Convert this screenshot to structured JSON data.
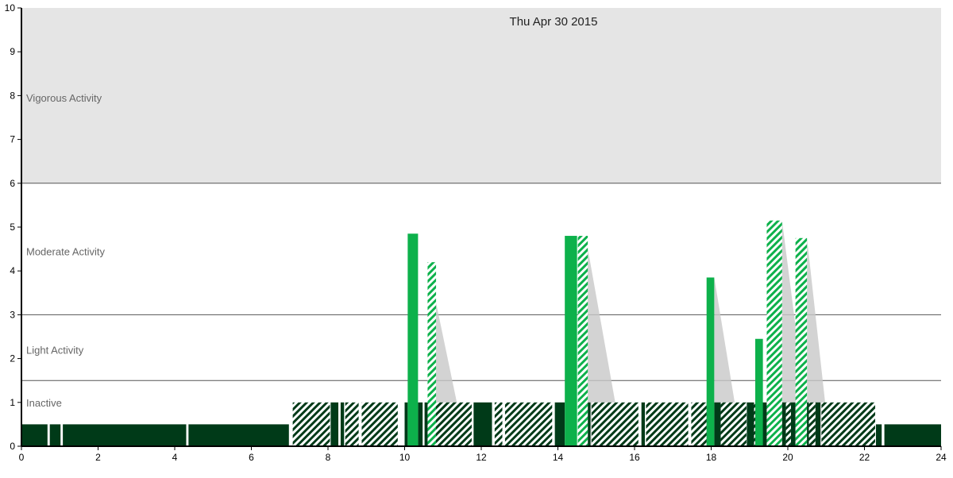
{
  "chart_data": {
    "type": "bar",
    "title": "Thu Apr 30 2015",
    "xlabel": "",
    "ylabel": "",
    "xlim": [
      0,
      24
    ],
    "ylim": [
      0,
      10
    ],
    "x_ticks": [
      0,
      2,
      4,
      6,
      8,
      10,
      12,
      14,
      16,
      18,
      20,
      22,
      24
    ],
    "y_ticks": [
      0,
      1,
      2,
      3,
      4,
      5,
      6,
      7,
      8,
      9,
      10
    ],
    "zones": [
      {
        "label": "Inactive",
        "from": 0,
        "to": 1.5,
        "label_y": 1.0,
        "fill": "#ffffff"
      },
      {
        "label": "Light Activity",
        "from": 1.5,
        "to": 3,
        "label_y": 2.2,
        "fill": "#ffffff"
      },
      {
        "label": "Moderate Activity",
        "from": 3,
        "to": 6,
        "label_y": 4.45,
        "fill": "#ffffff"
      },
      {
        "label": "Vigorous Activity",
        "from": 6,
        "to": 10,
        "label_y": 7.95,
        "fill": "#e5e5e5"
      }
    ],
    "zone_boundaries": [
      1.5,
      3,
      6
    ],
    "colors": {
      "dark": "#003a18",
      "bright": "#0db14b",
      "hatch": "#003a18",
      "shadow": "#c8c8c8",
      "vigorous_bg": "#e5e5e5"
    },
    "series": [
      {
        "style": "solid-dark",
        "points": [
          {
            "x0": 0.0,
            "x1": 0.68,
            "y": 0.5
          },
          {
            "x0": 0.74,
            "x1": 1.02,
            "y": 0.5
          },
          {
            "x0": 1.08,
            "x1": 4.3,
            "y": 0.5
          },
          {
            "x0": 4.36,
            "x1": 6.98,
            "y": 0.5
          },
          {
            "x0": 8.07,
            "x1": 8.27,
            "y": 1.0
          },
          {
            "x0": 8.33,
            "x1": 8.42,
            "y": 1.0
          },
          {
            "x0": 10.0,
            "x1": 10.08,
            "y": 1.0
          },
          {
            "x0": 10.35,
            "x1": 10.47,
            "y": 1.0
          },
          {
            "x0": 10.52,
            "x1": 10.6,
            "y": 1.0
          },
          {
            "x0": 11.8,
            "x1": 12.28,
            "y": 1.0
          },
          {
            "x0": 13.92,
            "x1": 14.18,
            "y": 1.0
          },
          {
            "x0": 14.78,
            "x1": 14.85,
            "y": 1.0
          },
          {
            "x0": 16.18,
            "x1": 16.27,
            "y": 1.0
          },
          {
            "x0": 17.88,
            "x1": 17.95,
            "y": 1.0
          },
          {
            "x0": 18.08,
            "x1": 18.25,
            "y": 1.0
          },
          {
            "x0": 18.93,
            "x1": 19.12,
            "y": 1.0
          },
          {
            "x0": 19.32,
            "x1": 19.45,
            "y": 1.0
          },
          {
            "x0": 19.85,
            "x1": 19.95,
            "y": 1.0
          },
          {
            "x0": 20.08,
            "x1": 20.2,
            "y": 1.0
          },
          {
            "x0": 20.38,
            "x1": 20.55,
            "y": 1.0
          },
          {
            "x0": 20.72,
            "x1": 20.85,
            "y": 1.0
          },
          {
            "x0": 22.3,
            "x1": 22.45,
            "y": 0.5
          },
          {
            "x0": 22.52,
            "x1": 24.0,
            "y": 0.5
          }
        ]
      },
      {
        "style": "hatched-dark",
        "points": [
          {
            "x0": 7.08,
            "x1": 8.05,
            "y": 1.0
          },
          {
            "x0": 8.45,
            "x1": 8.8,
            "y": 1.0
          },
          {
            "x0": 8.88,
            "x1": 9.82,
            "y": 1.0
          },
          {
            "x0": 10.68,
            "x1": 11.75,
            "y": 1.0
          },
          {
            "x0": 12.35,
            "x1": 12.55,
            "y": 1.0
          },
          {
            "x0": 12.62,
            "x1": 13.85,
            "y": 1.0
          },
          {
            "x0": 14.88,
            "x1": 16.1,
            "y": 1.0
          },
          {
            "x0": 16.3,
            "x1": 17.4,
            "y": 1.0
          },
          {
            "x0": 17.48,
            "x1": 17.88,
            "y": 1.0
          },
          {
            "x0": 18.25,
            "x1": 18.92,
            "y": 1.0
          },
          {
            "x0": 19.12,
            "x1": 19.32,
            "y": 1.0
          },
          {
            "x0": 19.95,
            "x1": 20.08,
            "y": 1.0
          },
          {
            "x0": 20.55,
            "x1": 20.72,
            "y": 1.0
          },
          {
            "x0": 20.88,
            "x1": 22.28,
            "y": 1.0
          }
        ]
      },
      {
        "style": "solid-bright",
        "points": [
          {
            "x0": 10.08,
            "x1": 10.35,
            "y": 4.85
          },
          {
            "x0": 14.18,
            "x1": 14.5,
            "y": 4.8
          },
          {
            "x0": 17.88,
            "x1": 18.08,
            "y": 3.85
          },
          {
            "x0": 19.15,
            "x1": 19.35,
            "y": 2.45
          }
        ]
      },
      {
        "style": "hatched-bright",
        "points": [
          {
            "x0": 10.6,
            "x1": 10.82,
            "y": 4.2
          },
          {
            "x0": 14.52,
            "x1": 14.78,
            "y": 4.8
          },
          {
            "x0": 19.45,
            "x1": 19.85,
            "y": 5.15
          },
          {
            "x0": 20.2,
            "x1": 20.5,
            "y": 4.75
          }
        ]
      },
      {
        "style": "shadow",
        "points": [
          {
            "x": 10.6,
            "y": 4.2,
            "x_end": 11.6
          },
          {
            "x": 14.72,
            "y": 4.8,
            "x_end": 15.7
          },
          {
            "x": 18.08,
            "y": 3.85,
            "x_end": 18.8
          },
          {
            "x": 19.85,
            "y": 5.15,
            "x_end": 20.6
          },
          {
            "x": 20.5,
            "y": 4.75,
            "x_end": 21.1
          }
        ]
      }
    ]
  }
}
